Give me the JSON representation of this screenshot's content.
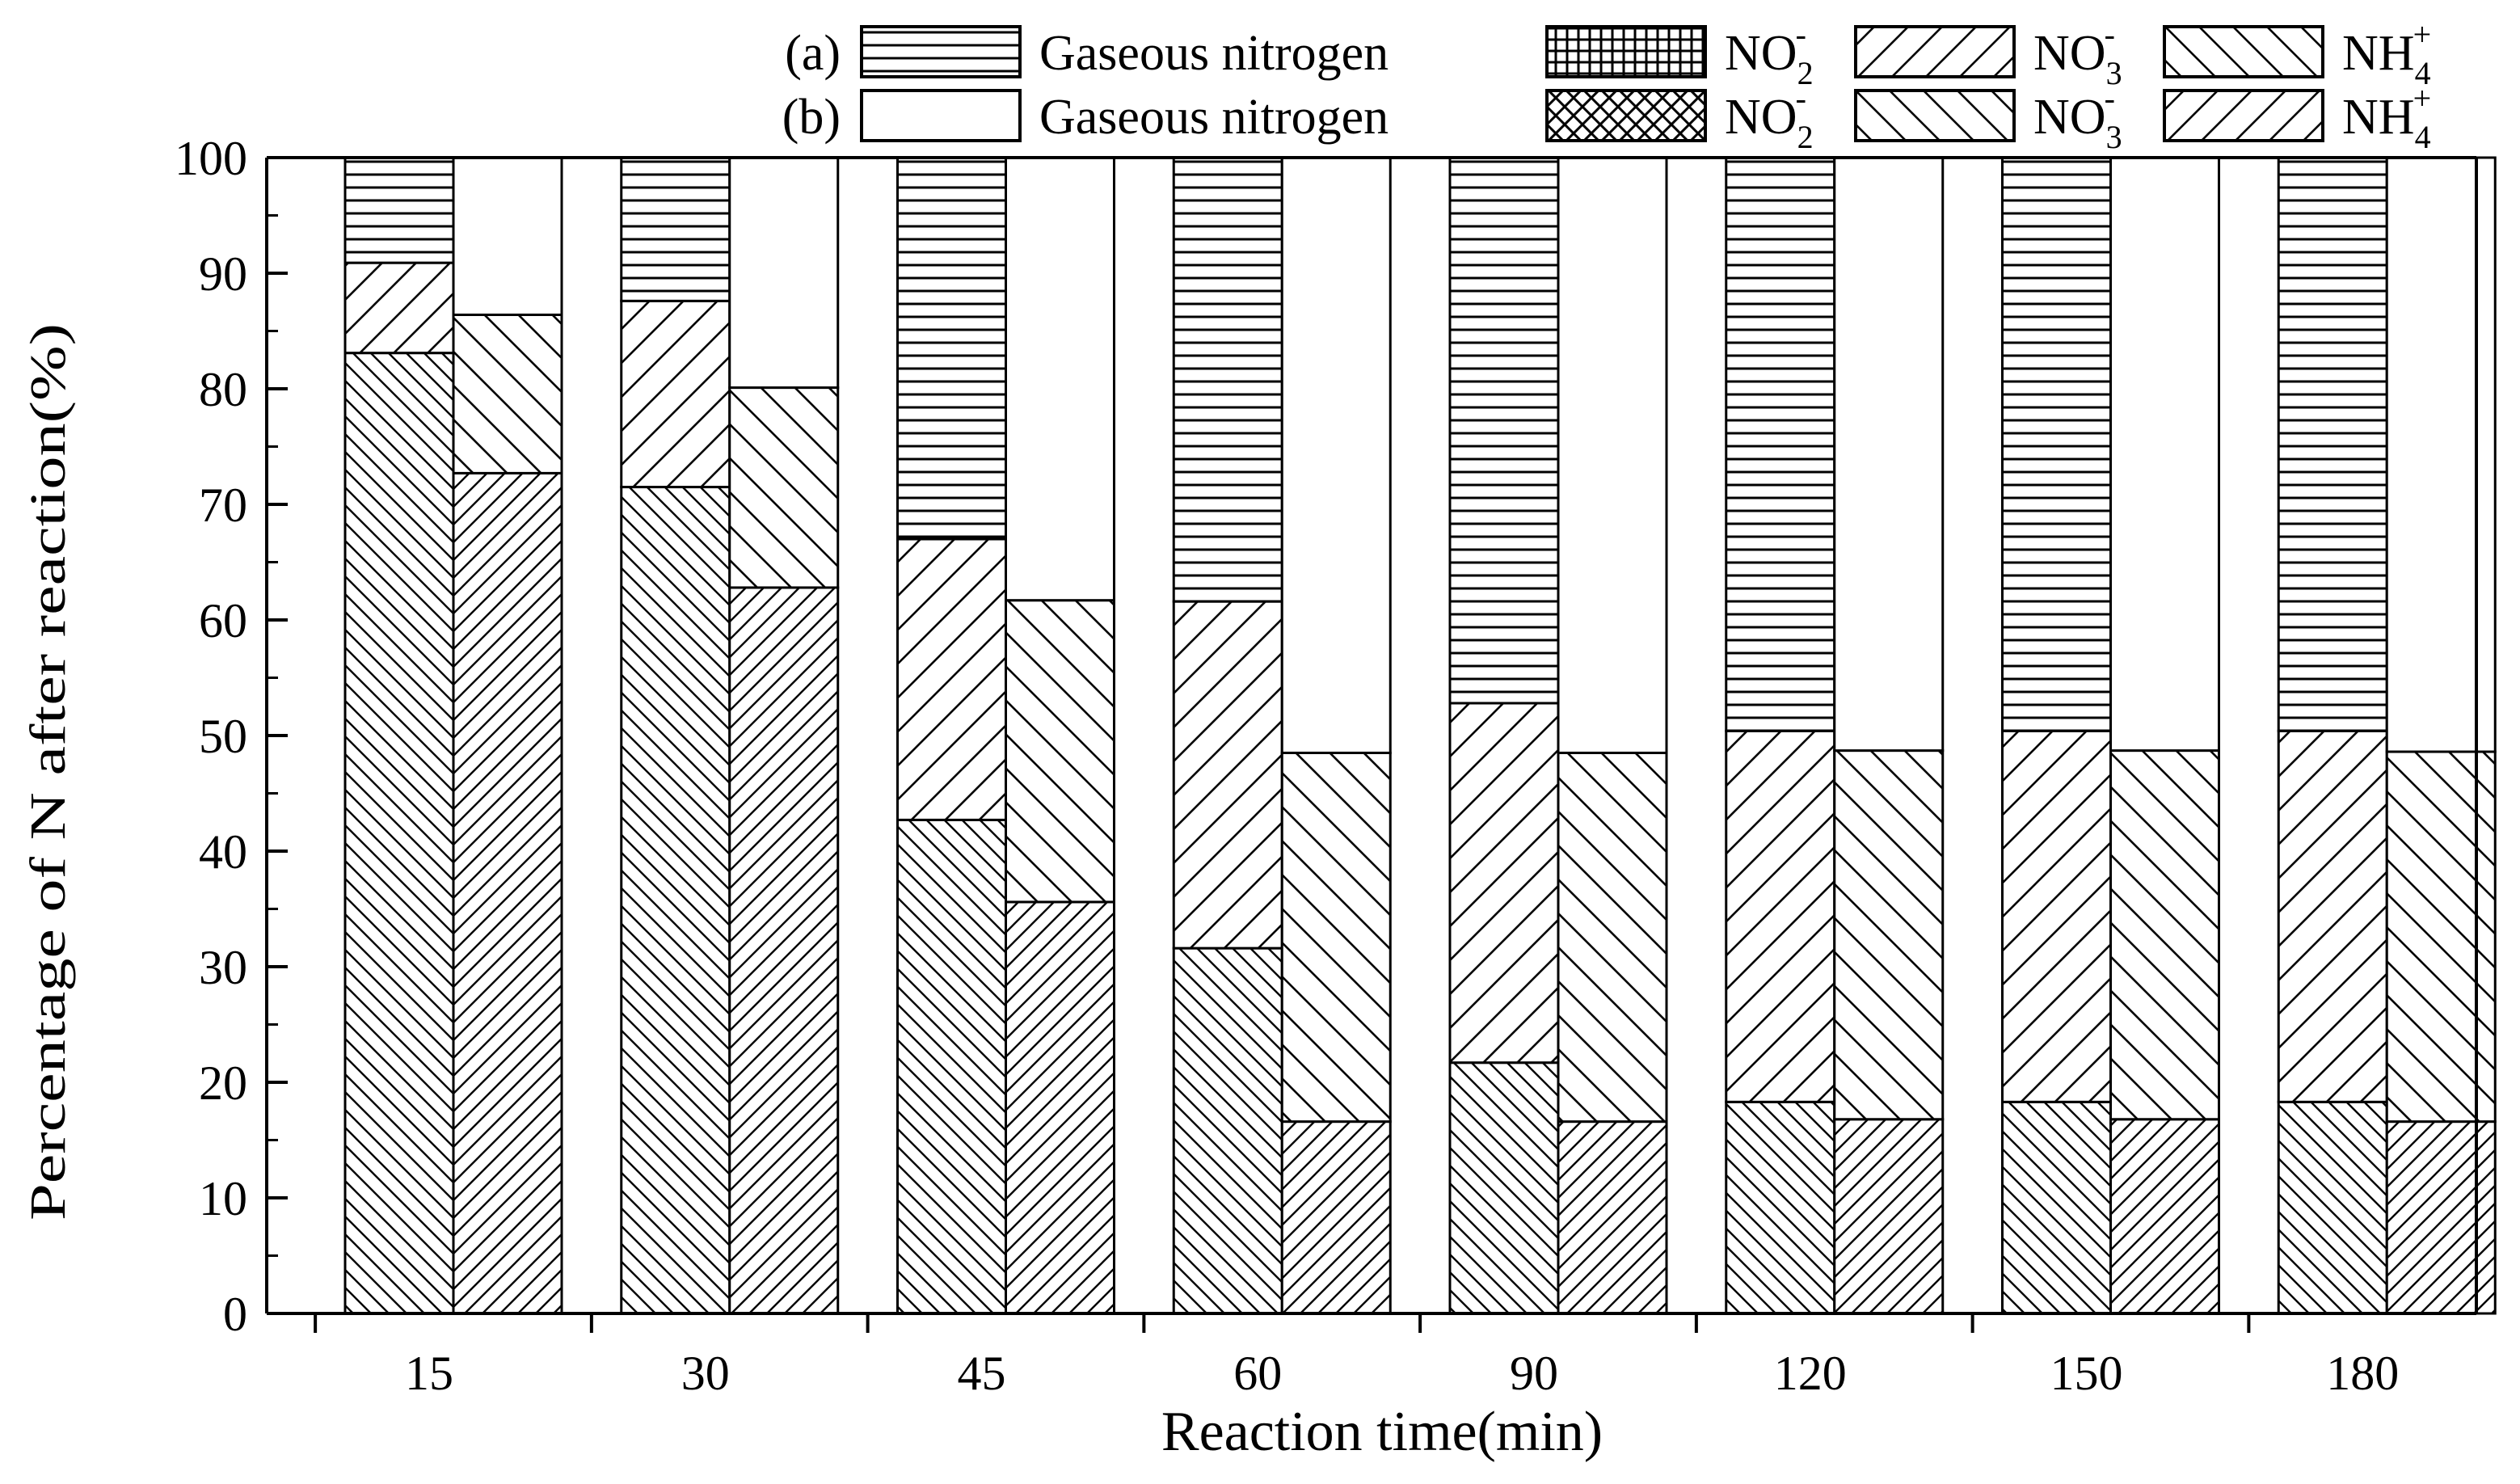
{
  "chart_data": {
    "type": "bar",
    "stacked": true,
    "grouped": true,
    "categories": [
      "15",
      "30",
      "45",
      "60",
      "90",
      "120",
      "150",
      "180"
    ],
    "groups": [
      {
        "name": "(a)",
        "series": [
          {
            "name": "NH4+",
            "values": [
              83.1,
              71.5,
              42.7,
              31.6,
              21.7,
              18.3,
              18.3,
              18.3
            ]
          },
          {
            "name": "NO3-",
            "values": [
              7.8,
              16.1,
              24.3,
              30.0,
              31.1,
              32.1,
              32.1,
              32.1
            ]
          },
          {
            "name": "NO2-",
            "values": [
              0.0,
              0.0,
              0.0,
              0.0,
              0.0,
              0.0,
              0.0,
              0.0
            ]
          },
          {
            "name": "Gaseous nitrogen",
            "values": [
              9.1,
              12.4,
              33.0,
              38.4,
              47.2,
              49.6,
              49.6,
              49.6
            ]
          }
        ]
      },
      {
        "name": "(b)",
        "series": [
          {
            "name": "NH4+",
            "values": [
              72.7,
              62.8,
              35.6,
              16.6,
              16.6,
              16.8,
              16.8,
              16.6
            ]
          },
          {
            "name": "NO3-",
            "values": [
              13.7,
              17.3,
              26.1,
              31.9,
              31.9,
              31.9,
              31.9,
              32.0
            ]
          },
          {
            "name": "NO2-",
            "values": [
              0.0,
              0.0,
              0.0,
              0.0,
              0.0,
              0.0,
              0.0,
              0.0
            ]
          },
          {
            "name": "Gaseous nitrogen",
            "values": [
              13.6,
              19.9,
              38.3,
              51.5,
              51.5,
              51.3,
              51.3,
              51.4
            ]
          }
        ]
      }
    ],
    "legend": {
      "rows": [
        {
          "group_label": "(a)",
          "items": [
            {
              "label": "Gaseous nitrogen",
              "base": "",
              "sub": "",
              "sup": "",
              "pattern": "hlines"
            },
            {
              "label": "NO2-",
              "base": "NO",
              "sub": "2",
              "sup": "-",
              "pattern": "grid"
            },
            {
              "label": "NO3-",
              "base": "NO",
              "sub": "3",
              "sup": "-",
              "pattern": "fwd"
            },
            {
              "label": "NH4+",
              "base": "NH",
              "sub": "4",
              "sup": "+",
              "pattern": "back"
            }
          ]
        },
        {
          "group_label": "(b)",
          "items": [
            {
              "label": "Gaseous nitrogen",
              "base": "",
              "sub": "",
              "sup": "",
              "pattern": "blank"
            },
            {
              "label": "NO2-",
              "base": "NO",
              "sub": "2",
              "sup": "-",
              "pattern": "cross"
            },
            {
              "label": "NO3-",
              "base": "NO",
              "sub": "3",
              "sup": "-",
              "pattern": "back"
            },
            {
              "label": "NH4+",
              "base": "NH",
              "sub": "4",
              "sup": "+",
              "pattern": "fwd"
            }
          ]
        }
      ],
      "placement": "top"
    },
    "patterns": {
      "a": {
        "NH4+": "back-dense",
        "NO3-": "fwd",
        "NO2-": "grid",
        "Gaseous nitrogen": "hlines"
      },
      "b": {
        "NH4+": "fwd-dense",
        "NO3-": "back",
        "NO2-": "cross",
        "Gaseous nitrogen": "blank"
      }
    },
    "xlabel": "Reaction time(min)",
    "ylabel": "Percentage of N after reaction(%)",
    "ylim": [
      0,
      100
    ],
    "yticks": [
      0,
      10,
      20,
      30,
      40,
      50,
      60,
      70,
      80,
      90,
      100
    ],
    "grid": false,
    "colors": {
      "stroke": "#000000",
      "background": "#ffffff"
    }
  }
}
